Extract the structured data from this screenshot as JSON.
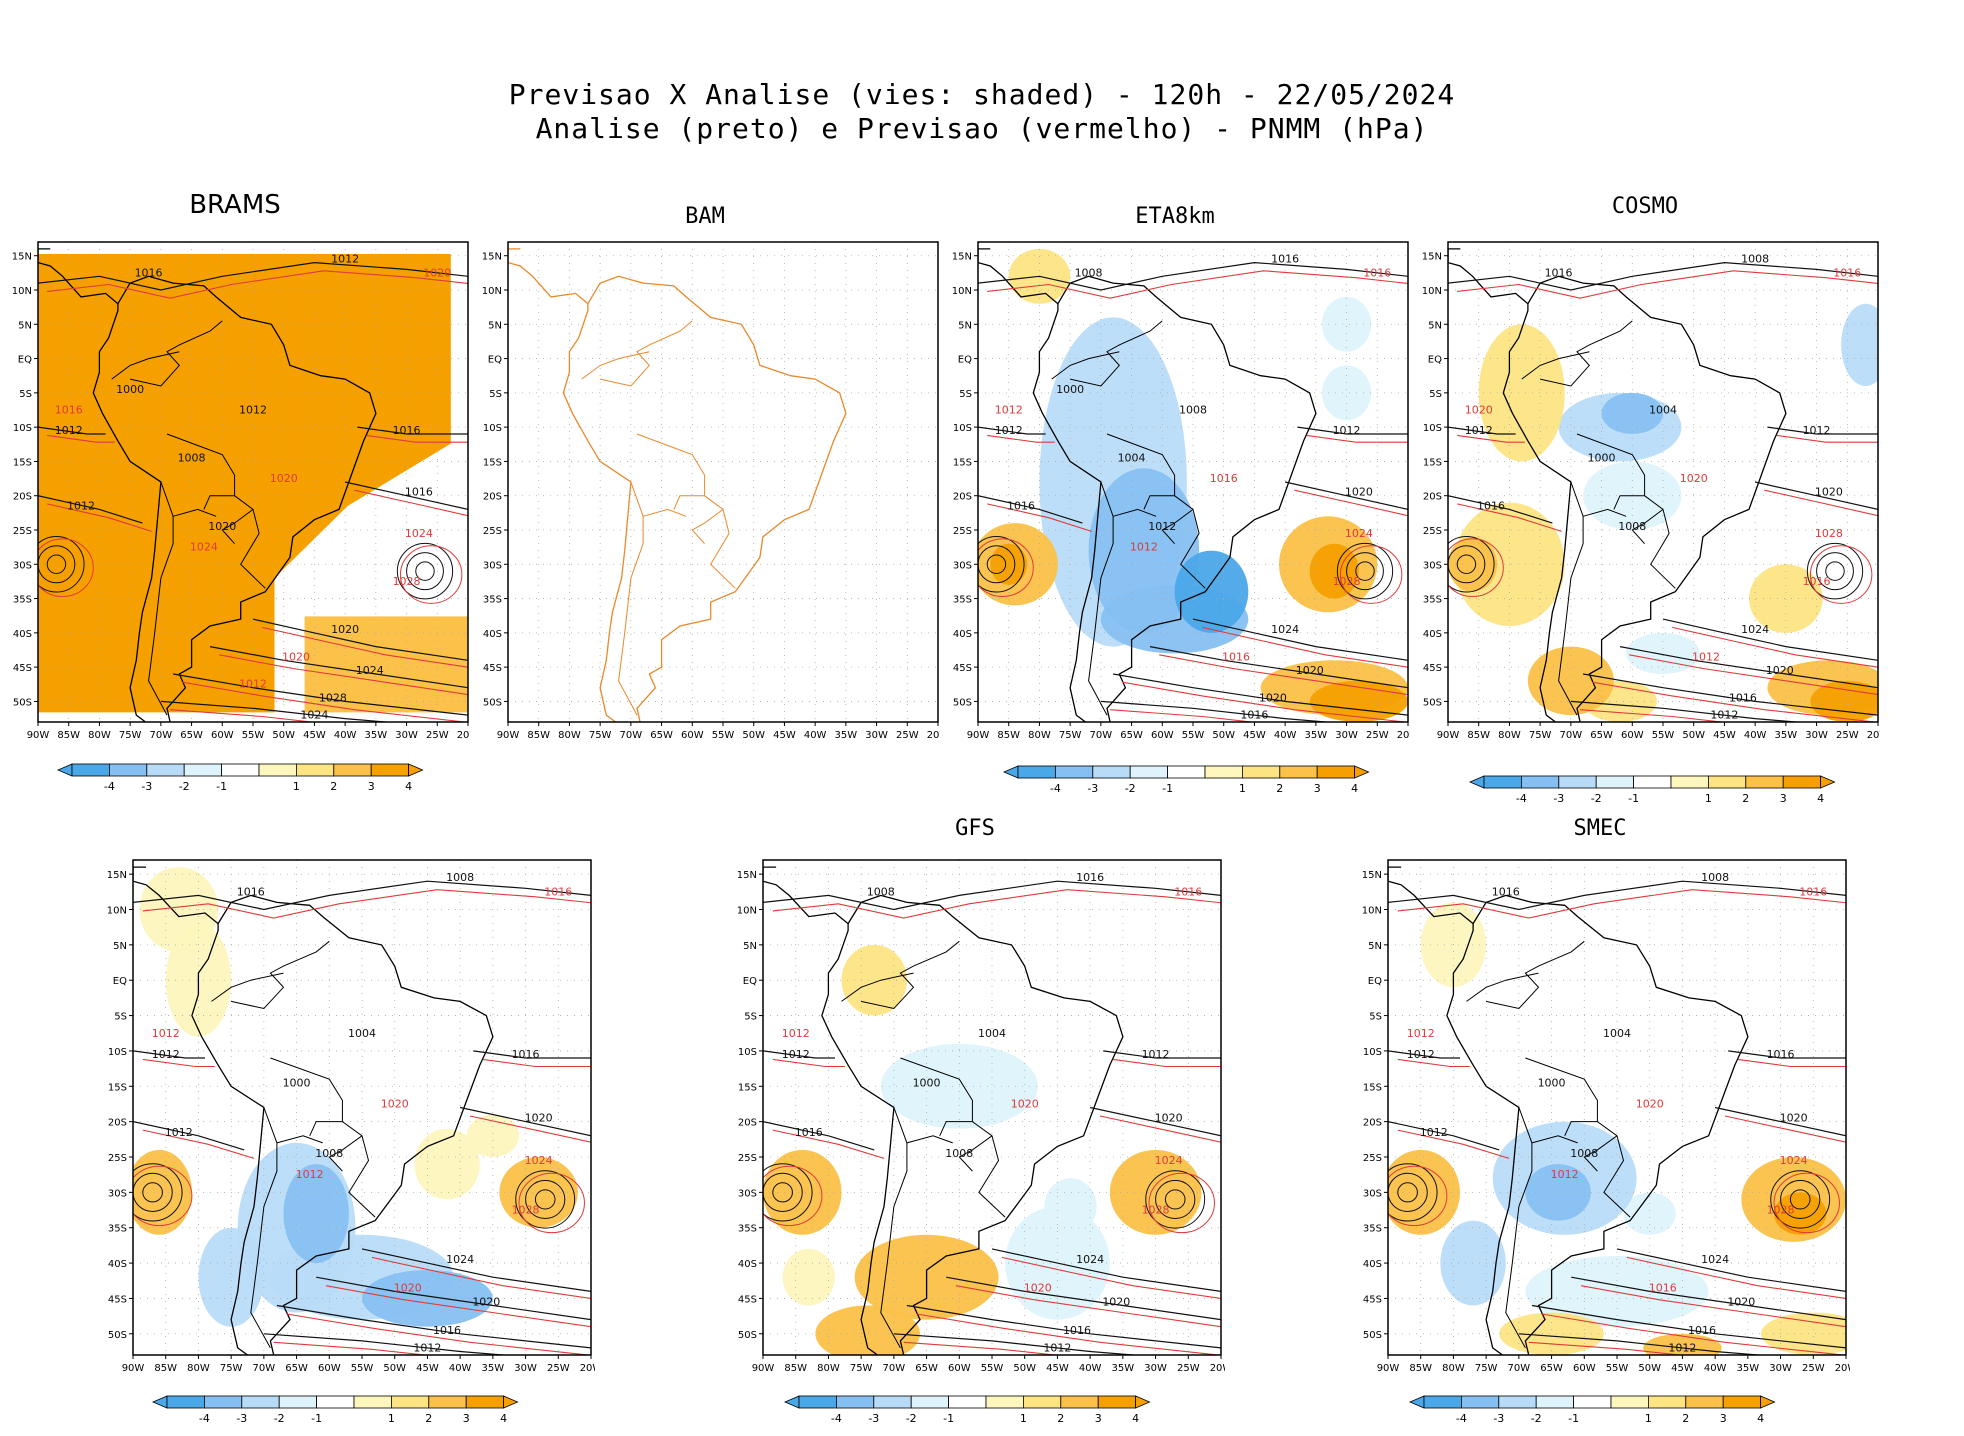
{
  "header": {
    "title_line1": "Previsao X Analise (vies: shaded) - 120h - 22/05/2024",
    "title_line2": "Analise (preto) e Previsao (vermelho) - PNMM (hPa)"
  },
  "colors": {
    "neg4": "#4aa8e8",
    "neg3": "#86c0f2",
    "neg2": "#b8dcf8",
    "neg1": "#def3fb",
    "pos1": "#fdf6bd",
    "pos2": "#fde483",
    "pos3": "#fbc148",
    "pos4": "#f6a000",
    "analysis": "#111111",
    "forecast": "#e03a3a",
    "bam_coast": "#e8892b"
  },
  "axis": {
    "lon_labels": [
      "90W",
      "85W",
      "80W",
      "75W",
      "70W",
      "65W",
      "60W",
      "55W",
      "50W",
      "45W",
      "40W",
      "35W",
      "30W",
      "25W",
      "20W"
    ],
    "lat_labels": [
      "15N",
      "10N",
      "5N",
      "EQ",
      "5S",
      "10S",
      "15S",
      "20S",
      "25S",
      "30S",
      "35S",
      "40S",
      "45S",
      "50S"
    ]
  },
  "colorbar": {
    "labels": [
      "-4",
      "-3",
      "-2",
      "-1",
      "1",
      "2",
      "3",
      "4"
    ]
  },
  "panels": [
    {
      "id": "brams",
      "title": "BRAMS",
      "isobars_black": [
        "1016",
        "1012",
        "1012",
        "1016",
        "1012",
        "1016",
        "1020",
        "1024",
        "1028",
        "1024",
        "1020",
        "1012",
        "1008",
        "1000"
      ],
      "isobars_red": [
        "1020",
        "1016",
        "1020",
        "1024",
        "1028",
        "1020",
        "1024",
        "1012"
      ]
    },
    {
      "id": "bam",
      "title": "BAM",
      "isobars_black": [],
      "isobars_red": []
    },
    {
      "id": "eta8km",
      "title": "ETA8km",
      "isobars_black": [
        "1008",
        "1016",
        "1012",
        "1012",
        "1016",
        "1020",
        "1024",
        "1020",
        "1020",
        "1016",
        "1012",
        "1008",
        "1004",
        "1000"
      ],
      "isobars_red": [
        "1016",
        "1012",
        "1016",
        "1024",
        "1028",
        "1016",
        "1012"
      ]
    },
    {
      "id": "cosmo",
      "title": "COSMO",
      "isobars_black": [
        "1016",
        "1008",
        "1012",
        "1012",
        "1016",
        "1020",
        "1024",
        "1020",
        "1016",
        "1012",
        "1008",
        "1004",
        "1000"
      ],
      "isobars_red": [
        "1016",
        "1020",
        "1020",
        "1028",
        "1016",
        "1012"
      ]
    },
    {
      "id": "wrf",
      "title": "",
      "isobars_black": [
        "1016",
        "1008",
        "1012",
        "1016",
        "1012",
        "1020",
        "1024",
        "1020",
        "1016",
        "1012",
        "1008",
        "1004",
        "1000"
      ],
      "isobars_red": [
        "1016",
        "1012",
        "1020",
        "1024",
        "1028",
        "1020",
        "1012"
      ]
    },
    {
      "id": "gfs",
      "title": "GFS",
      "isobars_black": [
        "1008",
        "1016",
        "1012",
        "1012",
        "1016",
        "1020",
        "1024",
        "1020",
        "1016",
        "1012",
        "1008",
        "1004",
        "1000"
      ],
      "isobars_red": [
        "1016",
        "1012",
        "1020",
        "1024",
        "1028",
        "1020"
      ]
    },
    {
      "id": "smec",
      "title": "SMEC",
      "isobars_black": [
        "1016",
        "1008",
        "1012",
        "1016",
        "1012",
        "1020",
        "1024",
        "1020",
        "1016",
        "1012",
        "1008",
        "1004",
        "1000"
      ],
      "isobars_red": [
        "1016",
        "1012",
        "1020",
        "1024",
        "1028",
        "1016",
        "1012"
      ]
    }
  ]
}
